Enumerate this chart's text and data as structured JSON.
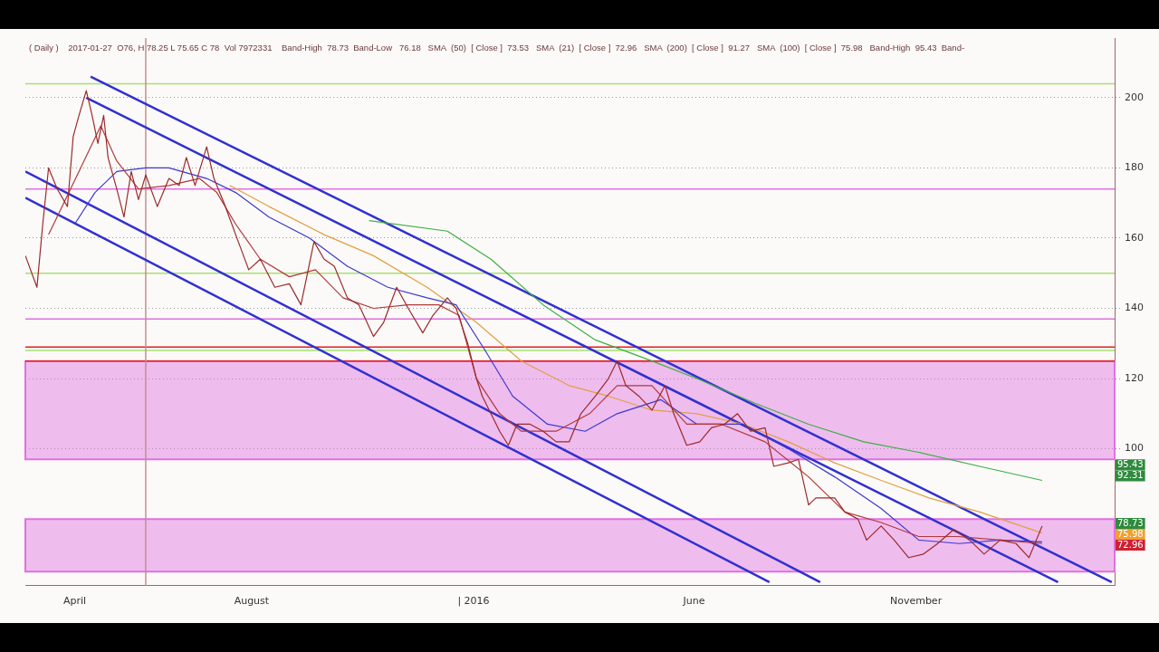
{
  "chart_data": {
    "type": "line",
    "title": "( Daily )    2017-01-27  O76, H 78.25 L 75.65 C 78  Vol 7972331    Band-High  78.73  Band-Low   76.18   SMA  (50)  [ Close ]  73.53   SMA  (21)  [ Close ]  72.96   SMA  (200)  [ Close ]  91.27   SMA  (100)  [ Close ]  75.98   Band-High  95.43  Band-",
    "xlim": [
      "2015-02-26",
      "2017-03-18"
    ],
    "xticks": [
      {
        "value": "2015-04-01",
        "label": "April"
      },
      {
        "value": "2015-08-01",
        "label": "August"
      },
      {
        "value": "2016-01-01",
        "label": "| 2016"
      },
      {
        "value": "2016-06-01",
        "label": "June"
      },
      {
        "value": "2016-11-01",
        "label": "November"
      }
    ],
    "ylim": [
      61,
      217
    ],
    "yticks": [
      100,
      120,
      140,
      160,
      180,
      200
    ],
    "grid": "y",
    "marker": "none",
    "line_style": "solid",
    "legend": false,
    "series": [
      {
        "type": "line",
        "color": "#9b2a2a",
        "x": [
          "2015-02-26",
          "2015-03-06",
          "2015-03-10",
          "2015-03-14",
          "2015-03-20",
          "2015-03-27",
          "2015-03-31",
          "2015-04-04",
          "2015-04-09",
          "2015-04-13",
          "2015-04-17",
          "2015-04-21",
          "2015-04-24",
          "2015-04-30",
          "2015-05-05",
          "2015-05-10",
          "2015-05-15",
          "2015-05-20",
          "2015-05-28",
          "2015-06-05",
          "2015-06-12",
          "2015-06-17",
          "2015-06-23",
          "2015-07-01",
          "2015-07-06",
          "2015-07-13",
          "2015-07-21",
          "2015-07-30",
          "2015-08-07",
          "2015-08-17",
          "2015-08-27",
          "2015-09-04",
          "2015-09-13",
          "2015-09-20",
          "2015-09-27",
          "2015-10-06",
          "2015-10-14",
          "2015-10-24",
          "2015-10-31",
          "2015-11-09",
          "2015-11-17",
          "2015-11-27",
          "2015-12-04",
          "2015-12-14",
          "2015-12-20",
          "2015-12-28",
          "2016-01-03",
          "2016-01-07",
          "2016-01-13",
          "2016-01-19",
          "2016-01-25",
          "2016-01-31",
          "2016-02-09",
          "2016-02-18",
          "2016-02-27",
          "2016-03-07",
          "2016-03-15",
          "2016-03-25",
          "2016-04-03",
          "2016-04-09",
          "2016-04-15",
          "2016-04-24",
          "2016-05-03",
          "2016-05-12",
          "2016-05-18",
          "2016-05-27",
          "2016-06-05",
          "2016-06-13",
          "2016-06-22",
          "2016-07-01",
          "2016-07-10",
          "2016-07-20",
          "2016-07-26",
          "2016-08-05",
          "2016-08-12",
          "2016-08-19",
          "2016-08-24",
          "2016-09-06",
          "2016-09-13",
          "2016-09-22",
          "2016-09-28",
          "2016-10-08",
          "2016-10-17",
          "2016-10-27",
          "2016-11-06",
          "2016-11-16",
          "2016-11-27",
          "2016-12-08",
          "2016-12-18",
          "2016-12-29",
          "2017-01-09",
          "2017-01-18",
          "2017-01-27"
        ],
        "values": [
          155,
          146,
          164,
          180,
          174,
          169,
          189,
          195,
          202,
          195,
          187,
          195,
          183,
          174,
          166,
          179,
          171,
          178,
          169,
          177,
          175,
          183,
          175,
          186,
          177,
          170,
          161,
          151,
          154,
          146,
          147,
          141,
          159,
          154,
          152,
          143,
          141,
          132,
          136,
          146,
          140,
          133,
          138,
          143,
          140,
          130,
          120,
          115,
          110,
          105,
          101,
          107,
          107,
          105,
          102,
          102,
          110,
          115,
          120,
          125,
          118,
          115,
          111,
          118,
          110,
          101,
          102,
          106,
          107,
          110,
          105,
          106,
          95,
          96,
          97,
          84,
          86,
          86,
          82,
          80,
          74,
          78,
          74,
          69,
          70,
          73,
          77,
          74,
          70,
          74,
          73,
          69,
          78
        ]
      },
      {
        "type": "line",
        "color": "#b03a3a",
        "x": [
          "2015-03-14",
          "2015-04-04",
          "2015-04-19",
          "2015-04-30",
          "2015-05-15",
          "2015-06-05",
          "2015-06-26",
          "2015-07-08",
          "2015-07-21",
          "2015-08-07",
          "2015-08-27",
          "2015-09-14",
          "2015-10-03",
          "2015-10-24",
          "2015-11-17",
          "2015-12-08",
          "2015-12-22",
          "2016-01-03",
          "2016-01-19",
          "2016-02-03",
          "2016-02-27",
          "2016-03-21",
          "2016-04-09",
          "2016-05-03",
          "2016-05-27",
          "2016-06-20",
          "2016-07-20",
          "2016-08-19",
          "2016-09-13",
          "2016-10-08",
          "2016-11-03",
          "2016-11-30",
          "2016-12-29",
          "2017-01-27"
        ],
        "values": [
          161,
          179,
          192,
          182,
          174,
          175,
          177,
          173,
          164,
          154,
          149,
          151,
          143,
          140,
          141,
          141,
          138,
          120,
          110,
          105,
          105,
          110,
          118,
          118,
          107,
          107,
          102,
          92,
          82,
          79,
          75,
          75,
          74,
          73
        ]
      },
      {
        "type": "line",
        "color": "#3a3ad0",
        "x": [
          "2015-04-01",
          "2015-04-15",
          "2015-04-30",
          "2015-05-20",
          "2015-06-05",
          "2015-07-01",
          "2015-07-21",
          "2015-08-13",
          "2015-09-10",
          "2015-10-06",
          "2015-11-03",
          "2015-11-30",
          "2015-12-20",
          "2016-01-09",
          "2016-01-28",
          "2016-02-21",
          "2016-03-18",
          "2016-04-09",
          "2016-05-09",
          "2016-06-03",
          "2016-07-05",
          "2016-08-05",
          "2016-09-06",
          "2016-10-08",
          "2016-11-03",
          "2016-12-01",
          "2016-12-29",
          "2017-01-27"
        ],
        "values": [
          164,
          173,
          179,
          180,
          180,
          177,
          173,
          166,
          160,
          152,
          146,
          143,
          141,
          128,
          115,
          107,
          105,
          110,
          114,
          107,
          107,
          100,
          92,
          83,
          74,
          73,
          74,
          73.5
        ]
      },
      {
        "type": "line",
        "color": "#e0a040",
        "x": [
          "2015-07-17",
          "2015-08-13",
          "2015-09-20",
          "2015-10-24",
          "2015-11-30",
          "2016-01-03",
          "2016-02-03",
          "2016-03-07",
          "2016-04-03",
          "2016-05-03",
          "2016-06-03",
          "2016-07-05",
          "2016-08-05",
          "2016-09-06",
          "2016-10-08",
          "2016-11-10",
          "2016-12-15",
          "2017-01-27"
        ],
        "values": [
          175,
          169,
          161,
          155,
          146,
          136,
          125,
          118,
          115,
          111,
          110,
          107,
          102,
          96,
          91,
          86,
          82,
          76
        ]
      },
      {
        "type": "line",
        "color": "#3cb043",
        "x": [
          "2015-10-21",
          "2015-12-14",
          "2016-01-13",
          "2016-02-18",
          "2016-03-25",
          "2016-05-03",
          "2016-06-03",
          "2016-07-13",
          "2016-08-19",
          "2016-09-26",
          "2016-11-03",
          "2016-12-15",
          "2017-01-27"
        ],
        "values": [
          165,
          162,
          154,
          141,
          131,
          125,
          120,
          113,
          107,
          102,
          99,
          95,
          91
        ]
      },
      {
        "type": "line",
        "color": "#3030d0",
        "x": [
          "2015-04-12",
          "2017-03-16"
        ],
        "values": [
          206,
          62
        ]
      },
      {
        "type": "line",
        "color": "#3030d0",
        "x": [
          "2015-04-09",
          "2017-02-07"
        ],
        "values": [
          200,
          62
        ]
      },
      {
        "type": "line",
        "color": "#3030d0",
        "x": [
          "2015-02-26",
          "2016-08-27"
        ],
        "values": [
          179,
          62
        ]
      },
      {
        "type": "line",
        "color": "#3030d0",
        "x": [
          "2015-02-26",
          "2016-07-23"
        ],
        "values": [
          171.5,
          62
        ]
      }
    ],
    "ref_lines": [
      {
        "axis": "y",
        "value": 204,
        "color": "#a8e070"
      },
      {
        "axis": "y",
        "value": 174,
        "color": "#e070e0"
      },
      {
        "axis": "y",
        "value": 150,
        "color": "#a8e070"
      },
      {
        "axis": "y",
        "value": 137,
        "color": "#e070e0"
      },
      {
        "axis": "y",
        "value": 129,
        "color": "#e02020"
      },
      {
        "axis": "y",
        "value": 128,
        "color": "#a8e070"
      },
      {
        "axis": "y",
        "value": 125,
        "color": "#e02020"
      },
      {
        "axis": "x",
        "value": "2015-05-20",
        "color": "#c09090"
      }
    ],
    "bands": [
      {
        "axis": "y",
        "from": 97,
        "to": 125,
        "color": "#e070e0"
      },
      {
        "axis": "y",
        "from": 65,
        "to": 80,
        "color": "#e070e0"
      }
    ],
    "annotations": [
      {
        "text": "95.43",
        "y": 95.43
      },
      {
        "text": "92.31",
        "y": 92.31
      },
      {
        "text": "78.73",
        "y": 78.73
      },
      {
        "text": "75.98",
        "y": 75.98
      },
      {
        "text": "72.96",
        "y": 72.96
      }
    ]
  }
}
